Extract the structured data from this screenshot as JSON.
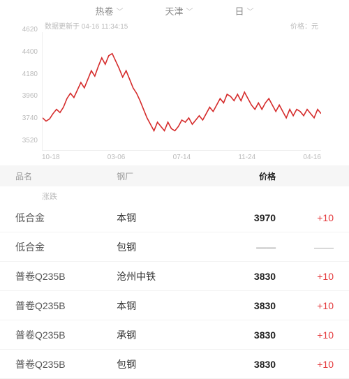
{
  "selectors": {
    "category": "热卷",
    "city": "天津",
    "period": "日"
  },
  "chart": {
    "type": "line",
    "update_text": "数据更新于 04-16 11:34:15",
    "price_unit_label": "价格：元",
    "line_color": "#d52b2b",
    "line_width": 1.6,
    "background_color": "#ffffff",
    "grid_color": "#eeeeee",
    "ylim": [
      3520,
      4620
    ],
    "y_ticks": [
      4620,
      4400,
      4180,
      3960,
      3740,
      3520
    ],
    "x_ticks": [
      "10-18",
      "03-06",
      "07-14",
      "11-24",
      "04-16"
    ],
    "series": [
      3820,
      3790,
      3810,
      3860,
      3900,
      3870,
      3920,
      4000,
      4050,
      4010,
      4080,
      4150,
      4100,
      4180,
      4260,
      4210,
      4300,
      4380,
      4320,
      4400,
      4420,
      4350,
      4280,
      4200,
      4260,
      4180,
      4100,
      4050,
      3980,
      3900,
      3820,
      3760,
      3700,
      3780,
      3740,
      3700,
      3780,
      3720,
      3700,
      3740,
      3800,
      3780,
      3820,
      3760,
      3800,
      3840,
      3800,
      3860,
      3920,
      3880,
      3940,
      4000,
      3960,
      4040,
      4020,
      3980,
      4040,
      3980,
      4060,
      4000,
      3940,
      3900,
      3960,
      3900,
      3960,
      4000,
      3940,
      3880,
      3940,
      3880,
      3820,
      3900,
      3840,
      3900,
      3880,
      3840,
      3900,
      3860,
      3820,
      3900,
      3860
    ]
  },
  "table": {
    "headers": {
      "name": "品名",
      "mill": "钢厂",
      "price": "价格",
      "change_sub": "涨跌"
    },
    "rows": [
      {
        "name": "低合金",
        "mill": "本钢",
        "price": "3970",
        "change": "+10",
        "change_cls": "red"
      },
      {
        "name": "低合金",
        "mill": "包钢",
        "price": "——",
        "change": "——",
        "change_cls": "grey"
      },
      {
        "name": "普卷Q235B",
        "mill": "沧州中铁",
        "price": "3830",
        "change": "+10",
        "change_cls": "red"
      },
      {
        "name": "普卷Q235B",
        "mill": "本钢",
        "price": "3830",
        "change": "+10",
        "change_cls": "red"
      },
      {
        "name": "普卷Q235B",
        "mill": "承钢",
        "price": "3830",
        "change": "+10",
        "change_cls": "red"
      },
      {
        "name": "普卷Q235B",
        "mill": "包钢",
        "price": "3830",
        "change": "+10",
        "change_cls": "red"
      }
    ]
  }
}
